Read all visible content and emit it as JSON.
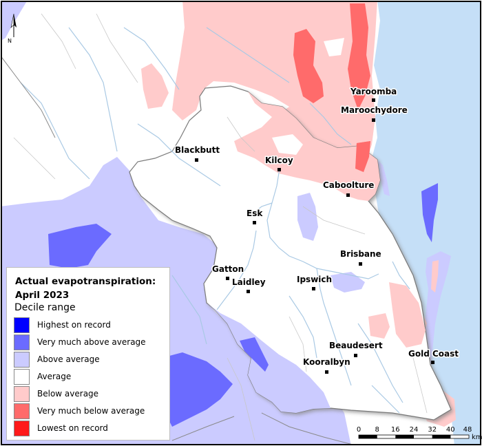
{
  "colors": {
    "highest": "#0000ff",
    "very_much_above": "#6b6bff",
    "above": "#cbcbff",
    "average": "#ffffff",
    "below": "#ffcbcb",
    "very_much_below": "#ff6b6b",
    "lowest": "#ff1a1a",
    "sea": "#c5dff7",
    "river": "#a9c9e4"
  },
  "legend": {
    "title": "Actual evapotranspiration: April 2023",
    "subtitle": "Decile range",
    "items": [
      {
        "label": "Highest on record",
        "color": "#0000ff"
      },
      {
        "label": "Very much above average",
        "color": "#6b6bff"
      },
      {
        "label": "Above average",
        "color": "#cbcbff"
      },
      {
        "label": "Average",
        "color": "#ffffff"
      },
      {
        "label": "Below average",
        "color": "#ffcbcb"
      },
      {
        "label": "Very much below average",
        "color": "#ff6b6b"
      },
      {
        "label": "Lowest on record",
        "color": "#ff1a1a"
      }
    ]
  },
  "places": [
    "Yaroomba",
    "Maroochydore",
    "Blackbutt",
    "Kilcoy",
    "Caboolture",
    "Esk",
    "Brisbane",
    "Gatton",
    "Laidley",
    "Ipswich",
    "Beaudesert",
    "Gold Coast",
    "Kooralbyn"
  ],
  "scale": {
    "ticks": [
      "0",
      "8",
      "16",
      "24",
      "32",
      "40",
      "48"
    ],
    "unit": "km"
  },
  "north_arrow": {
    "label": "N",
    "icon": "north-arrow-icon"
  }
}
